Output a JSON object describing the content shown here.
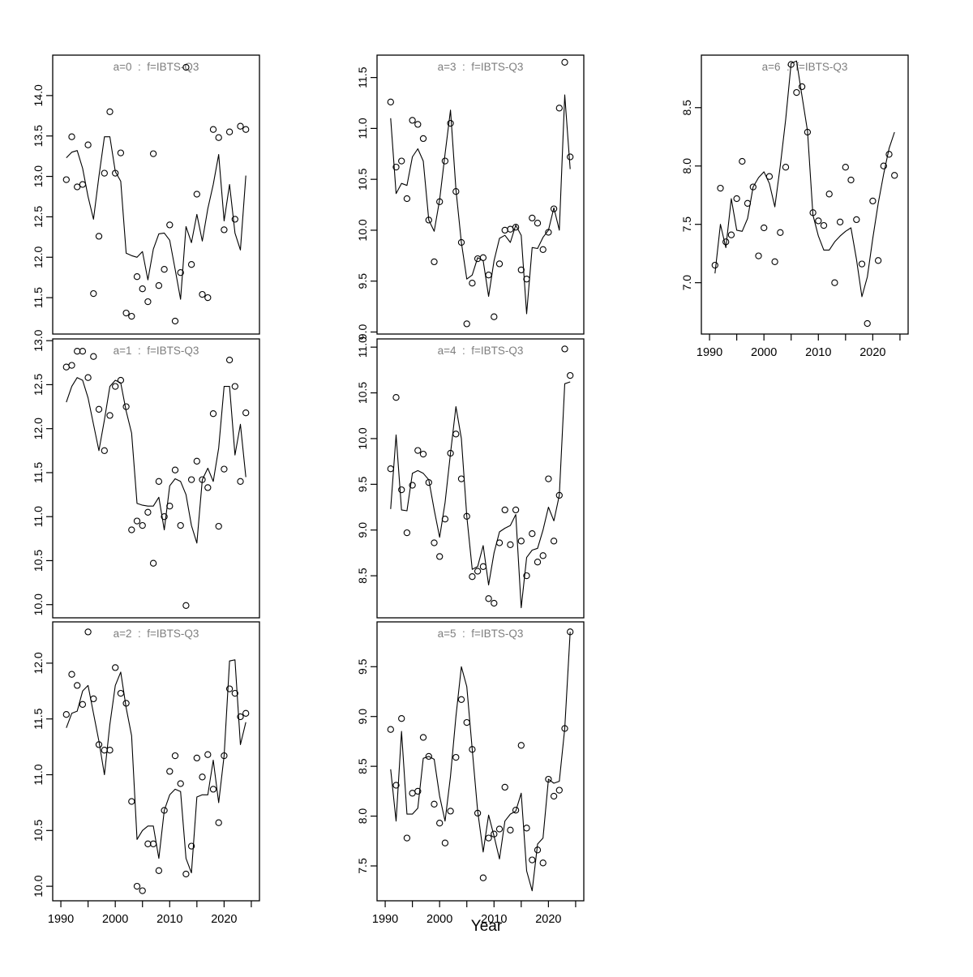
{
  "figure": {
    "background": "#ffffff",
    "axis_color": "#000000",
    "title_color": "#7e7e7e",
    "point_color": "#000000",
    "line_color": "#000000"
  },
  "chart_data": {
    "type": "line",
    "subtype": "scatter-with-fitted-line, 7 panels",
    "xlabel": "Year",
    "x": {
      "range": [
        1988.5,
        2026.5
      ],
      "major_ticks": [
        1990,
        2000,
        2010,
        2020
      ],
      "minor_ticks": [
        1995,
        2005,
        2015,
        2025
      ],
      "years": [
        1991,
        1992,
        1993,
        1994,
        1995,
        1996,
        1997,
        1998,
        1999,
        2000,
        2001,
        2002,
        2003,
        2004,
        2005,
        2006,
        2007,
        2008,
        2009,
        2010,
        2011,
        2012,
        2013,
        2014,
        2015,
        2016,
        2017,
        2018,
        2019,
        2020,
        2021,
        2022,
        2023,
        2024
      ]
    },
    "panels": [
      {
        "id": "a0",
        "label": "a=0  :  f=IBTS-Q3",
        "col": 0,
        "row": 0,
        "show_x_labels": false,
        "ylim": [
          11.05,
          14.5
        ],
        "yticks": [
          11.5,
          12.0,
          12.5,
          13.0,
          13.5,
          14.0
        ],
        "obs": [
          12.96,
          13.49,
          12.87,
          12.9,
          13.39,
          11.55,
          12.26,
          13.04,
          13.8,
          13.04,
          13.29,
          11.31,
          11.27,
          11.76,
          11.61,
          11.45,
          13.28,
          11.65,
          11.85,
          12.4,
          11.21,
          11.81,
          14.35,
          11.91,
          12.78,
          11.54,
          11.5,
          13.58,
          13.48,
          12.34,
          13.55,
          12.47,
          13.62,
          13.58
        ],
        "fit": [
          13.23,
          13.3,
          13.32,
          13.1,
          12.75,
          12.47,
          13.0,
          13.49,
          13.49,
          13.06,
          12.94,
          12.05,
          12.02,
          12.0,
          12.07,
          11.72,
          12.1,
          12.29,
          12.3,
          12.21,
          11.85,
          11.48,
          12.38,
          12.18,
          12.53,
          12.2,
          12.6,
          12.9,
          13.27,
          12.45,
          12.9,
          12.3,
          12.09,
          13.01
        ]
      },
      {
        "id": "a1",
        "label": "a=1  :  f=IBTS-Q3",
        "col": 0,
        "row": 1,
        "show_x_labels": false,
        "ylim": [
          9.85,
          13.02
        ],
        "yticks": [
          10.0,
          10.5,
          11.0,
          11.5,
          12.0,
          12.5,
          13.0
        ],
        "obs": [
          12.7,
          12.72,
          12.88,
          12.88,
          12.58,
          12.82,
          12.22,
          11.75,
          12.15,
          12.48,
          12.55,
          12.25,
          10.85,
          10.95,
          10.9,
          11.05,
          10.47,
          11.4,
          11.0,
          11.12,
          11.53,
          10.9,
          9.99,
          11.42,
          11.63,
          11.42,
          11.33,
          12.17,
          10.89,
          11.54,
          12.78,
          12.48,
          11.4,
          12.18
        ],
        "fit": [
          12.3,
          12.48,
          12.58,
          12.55,
          12.35,
          12.05,
          11.75,
          12.1,
          12.48,
          12.55,
          12.52,
          12.2,
          11.95,
          11.15,
          11.13,
          11.12,
          11.12,
          11.22,
          10.85,
          11.35,
          11.43,
          11.4,
          11.25,
          10.9,
          10.7,
          11.42,
          11.55,
          11.4,
          11.78,
          12.48,
          12.48,
          11.7,
          12.05,
          11.45
        ]
      },
      {
        "id": "a2",
        "label": "a=2  :  f=IBTS-Q3",
        "col": 0,
        "row": 2,
        "show_x_labels": true,
        "ylim": [
          9.87,
          12.37
        ],
        "yticks": [
          10.0,
          10.5,
          11.0,
          11.5,
          12.0
        ],
        "obs": [
          11.54,
          11.9,
          11.8,
          11.63,
          12.28,
          11.68,
          11.27,
          11.22,
          11.22,
          11.96,
          11.73,
          11.64,
          10.76,
          10.0,
          9.96,
          10.38,
          10.38,
          10.14,
          10.68,
          11.03,
          11.17,
          10.92,
          10.11,
          10.36,
          11.15,
          10.98,
          11.18,
          10.87,
          10.57,
          11.17,
          11.77,
          11.73,
          11.52,
          11.55
        ],
        "fit": [
          11.42,
          11.55,
          11.57,
          11.75,
          11.8,
          11.55,
          11.3,
          11.0,
          11.45,
          11.8,
          11.92,
          11.6,
          11.35,
          10.42,
          10.5,
          10.54,
          10.54,
          10.25,
          10.68,
          10.82,
          10.87,
          10.85,
          10.25,
          10.12,
          10.8,
          10.82,
          10.82,
          11.13,
          10.75,
          11.17,
          12.02,
          12.03,
          11.27,
          11.47
        ]
      },
      {
        "id": "a3",
        "label": "a=3  :  f=IBTS-Q3",
        "col": 1,
        "row": 0,
        "show_x_labels": false,
        "ylim": [
          8.98,
          11.72
        ],
        "yticks": [
          9.0,
          9.5,
          10.0,
          10.5,
          11.0,
          11.5
        ],
        "obs": [
          11.26,
          10.62,
          10.68,
          10.31,
          11.08,
          11.04,
          10.9,
          10.1,
          9.69,
          10.28,
          10.68,
          11.05,
          10.38,
          9.88,
          9.08,
          9.48,
          9.72,
          9.73,
          9.56,
          9.15,
          9.67,
          10.0,
          10.01,
          10.03,
          9.61,
          9.52,
          10.12,
          10.07,
          9.81,
          9.98,
          10.21,
          11.2,
          11.65,
          10.72
        ],
        "fit": [
          11.1,
          10.36,
          10.46,
          10.44,
          10.72,
          10.8,
          10.68,
          10.1,
          9.99,
          10.3,
          10.75,
          11.18,
          10.4,
          9.88,
          9.52,
          9.56,
          9.73,
          9.7,
          9.35,
          9.7,
          9.92,
          9.95,
          9.88,
          10.05,
          9.95,
          9.18,
          9.83,
          9.82,
          9.93,
          10.0,
          10.22,
          10.0,
          11.33,
          10.6
        ]
      },
      {
        "id": "a4",
        "label": "a=4  :  f=IBTS-Q3",
        "col": 1,
        "row": 1,
        "show_x_labels": false,
        "ylim": [
          8.04,
          11.09
        ],
        "yticks": [
          8.5,
          9.0,
          9.5,
          10.0,
          10.5,
          11.0
        ],
        "obs": [
          9.67,
          10.45,
          9.44,
          8.97,
          9.49,
          9.87,
          9.83,
          9.52,
          8.86,
          8.71,
          9.12,
          9.84,
          10.05,
          9.56,
          9.15,
          8.49,
          8.55,
          8.6,
          8.25,
          8.2,
          8.86,
          9.22,
          8.84,
          9.22,
          8.88,
          8.5,
          8.96,
          8.65,
          8.72,
          9.56,
          8.88,
          9.38,
          10.98,
          10.69
        ],
        "fit": [
          9.23,
          10.04,
          9.22,
          9.21,
          9.62,
          9.65,
          9.62,
          9.55,
          9.22,
          8.92,
          9.3,
          9.84,
          10.35,
          10.0,
          9.15,
          8.57,
          8.6,
          8.83,
          8.4,
          8.75,
          8.98,
          9.02,
          9.05,
          9.17,
          8.15,
          8.7,
          8.78,
          8.8,
          9.0,
          9.25,
          9.1,
          9.38,
          10.6,
          10.62
        ]
      },
      {
        "id": "a5",
        "label": "a=5  :  f=IBTS-Q3",
        "col": 1,
        "row": 2,
        "show_x_labels": true,
        "ylim": [
          7.15,
          9.95
        ],
        "yticks": [
          7.5,
          8.0,
          8.5,
          9.0,
          9.5
        ],
        "obs": [
          8.87,
          8.31,
          8.98,
          7.78,
          8.23,
          8.25,
          8.79,
          8.6,
          8.12,
          7.93,
          7.73,
          8.05,
          8.59,
          9.17,
          8.94,
          8.67,
          8.03,
          7.38,
          7.78,
          7.82,
          7.87,
          8.29,
          7.86,
          8.06,
          8.71,
          7.88,
          7.56,
          7.66,
          7.53,
          8.37,
          8.2,
          8.26,
          8.88,
          9.85
        ],
        "fit": [
          8.47,
          7.95,
          8.85,
          8.02,
          8.02,
          8.08,
          8.58,
          8.6,
          8.57,
          8.2,
          7.95,
          8.4,
          9.0,
          9.5,
          9.3,
          8.67,
          8.05,
          7.64,
          8.01,
          7.8,
          7.57,
          7.95,
          8.02,
          8.05,
          8.23,
          7.45,
          7.25,
          7.72,
          7.78,
          8.37,
          8.33,
          8.35,
          8.88,
          9.85
        ]
      },
      {
        "id": "a6",
        "label": "a=6  :  f=IBTS-Q3",
        "col": 2,
        "row": 0,
        "show_x_labels": true,
        "ylim": [
          6.56,
          8.95
        ],
        "yticks": [
          7.0,
          7.5,
          8.0,
          8.5
        ],
        "obs": [
          7.15,
          7.81,
          7.35,
          7.41,
          7.72,
          8.04,
          7.68,
          7.82,
          7.23,
          7.47,
          7.91,
          7.18,
          7.43,
          7.99,
          8.87,
          8.63,
          8.68,
          8.29,
          7.6,
          7.53,
          7.49,
          7.76,
          7.0,
          7.52,
          7.99,
          7.88,
          7.54,
          7.16,
          6.65,
          7.7,
          7.19,
          8.0,
          8.1,
          7.92
        ],
        "fit": [
          7.08,
          7.5,
          7.3,
          7.72,
          7.45,
          7.44,
          7.55,
          7.82,
          7.9,
          7.95,
          7.85,
          7.65,
          8.0,
          8.4,
          8.88,
          8.9,
          8.6,
          8.3,
          7.58,
          7.4,
          7.28,
          7.28,
          7.35,
          7.4,
          7.44,
          7.47,
          7.2,
          6.88,
          7.05,
          7.38,
          7.68,
          7.93,
          8.15,
          8.29
        ]
      }
    ]
  }
}
